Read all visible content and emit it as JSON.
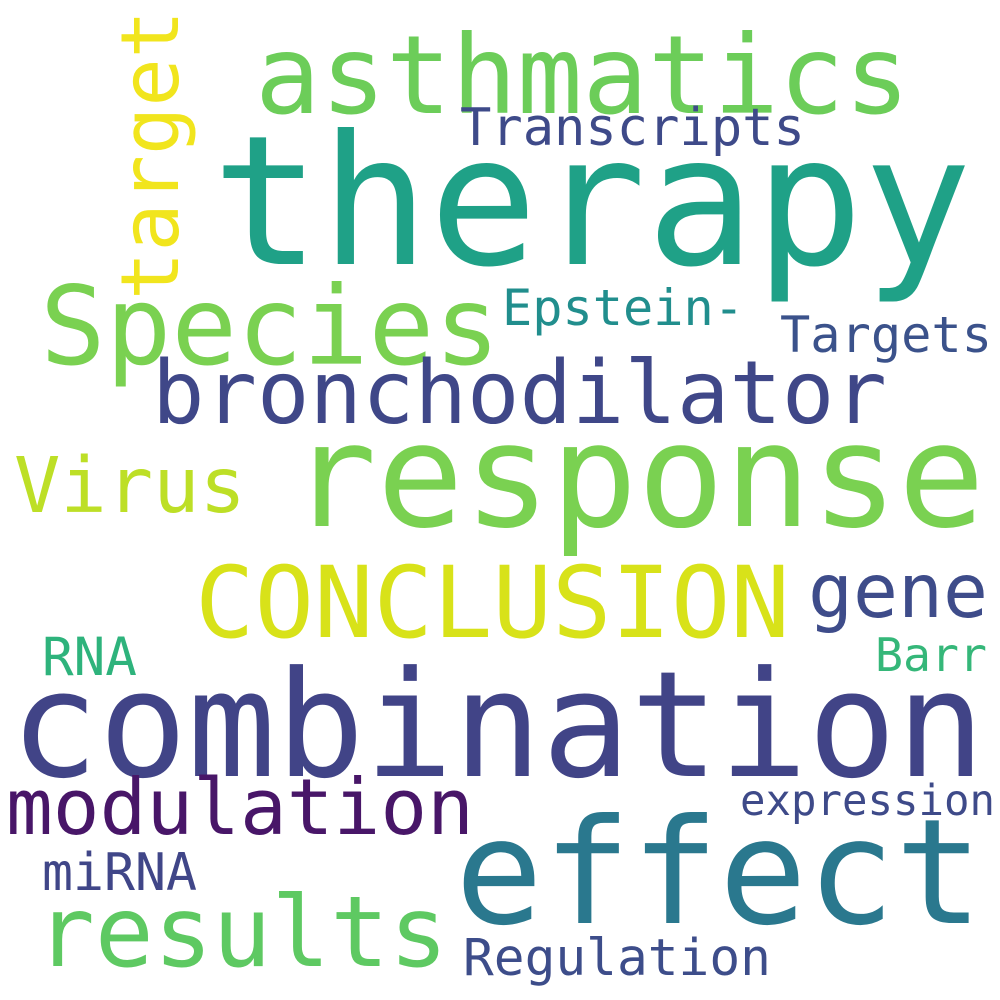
{
  "words": [
    {
      "text": "therapy",
      "color": "#1fa187"
    },
    {
      "text": "asthmatics",
      "color": "#6ccd59"
    },
    {
      "text": "target",
      "color": "#f1e51d"
    },
    {
      "text": "Transcripts",
      "color": "#3e4a89"
    },
    {
      "text": "Species",
      "color": "#7ad151"
    },
    {
      "text": "Epstein-",
      "color": "#218e8d"
    },
    {
      "text": "Targets",
      "color": "#3b528b"
    },
    {
      "text": "bronchodilator",
      "color": "#3f4788"
    },
    {
      "text": "Virus",
      "color": "#bddf26"
    },
    {
      "text": "response",
      "color": "#7ad151"
    },
    {
      "text": "CONCLUSION",
      "color": "#d8e219"
    },
    {
      "text": "gene",
      "color": "#3e4c8a"
    },
    {
      "text": "RNA",
      "color": "#2eb37c"
    },
    {
      "text": "Barr",
      "color": "#35b779"
    },
    {
      "text": "combination",
      "color": "#414487"
    },
    {
      "text": "modulation",
      "color": "#481668"
    },
    {
      "text": "expression",
      "color": "#3e4a89"
    },
    {
      "text": "effect",
      "color": "#2a788e"
    },
    {
      "text": "miRNA",
      "color": "#404688"
    },
    {
      "text": "results",
      "color": "#5ec962"
    },
    {
      "text": "Regulation",
      "color": "#3d4d8a"
    }
  ]
}
